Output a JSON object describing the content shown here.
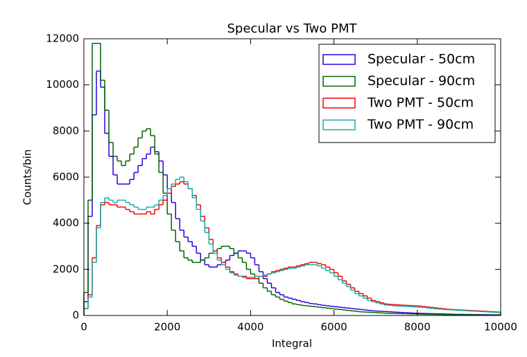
{
  "chart_data": {
    "type": "histogram",
    "title": "Specular vs Two PMT",
    "x_label": "Integral",
    "y_label": "Counts/bin",
    "bins": [
      0,
      100,
      200,
      300,
      400,
      500,
      600,
      700,
      800,
      900,
      1000,
      1100,
      1200,
      1300,
      1400,
      1500,
      1600,
      1700,
      1800,
      1900,
      2000,
      2100,
      2200,
      2300,
      2400,
      2500,
      2600,
      2700,
      2800,
      2900,
      3000,
      3100,
      3200,
      3300,
      3400,
      3500,
      3600,
      3700,
      3800,
      3900,
      4000,
      4100,
      4200,
      4300,
      4400,
      4500,
      4600,
      4700,
      4800,
      4900,
      5000,
      5100,
      5200,
      5300,
      5400,
      5500,
      5600,
      5700,
      5800,
      5900,
      6000,
      6100,
      6200,
      6300,
      6400,
      6500,
      6600,
      6700,
      6800,
      6900,
      7000,
      7100,
      7200,
      7300,
      7400,
      7500,
      7600,
      7700,
      7800,
      7900,
      8000,
      8100,
      8200,
      8300,
      8400,
      8500,
      8600,
      8700,
      8800,
      8900,
      9000,
      9100,
      9200,
      9300,
      9400,
      9500,
      9600,
      9700,
      9800,
      9900,
      10000
    ],
    "series": [
      {
        "name": "Specular - 50cm",
        "color": "#2a00dd",
        "values": [
          600,
          4300,
          8700,
          10600,
          9900,
          7900,
          6900,
          6100,
          5700,
          5700,
          5700,
          5900,
          6200,
          6500,
          6800,
          7000,
          7300,
          7100,
          6700,
          6100,
          5500,
          4900,
          4200,
          3700,
          3400,
          3200,
          3000,
          2700,
          2400,
          2200,
          2100,
          2100,
          2200,
          2300,
          2400,
          2600,
          2700,
          2800,
          2800,
          2700,
          2500,
          2200,
          1900,
          1600,
          1400,
          1200,
          1000,
          900,
          800,
          750,
          700,
          650,
          600,
          560,
          520,
          500,
          470,
          440,
          420,
          400,
          380,
          360,
          340,
          320,
          300,
          280,
          260,
          240,
          220,
          200,
          190,
          180,
          170,
          160,
          150,
          140,
          130,
          120,
          110,
          100,
          95,
          90,
          85,
          80,
          75,
          70,
          65,
          60,
          55,
          50,
          50,
          45,
          45,
          40,
          40,
          35,
          35,
          30,
          30,
          30
        ]
      },
      {
        "name": "Specular - 90cm",
        "color": "#006400",
        "values": [
          1000,
          5000,
          11800,
          11800,
          10200,
          8900,
          7500,
          6900,
          6700,
          6500,
          6700,
          7000,
          7300,
          7700,
          8000,
          8100,
          7800,
          7000,
          6200,
          5300,
          4400,
          3700,
          3200,
          2800,
          2500,
          2400,
          2300,
          2300,
          2400,
          2500,
          2700,
          2800,
          2900,
          3000,
          3000,
          2900,
          2700,
          2500,
          2300,
          2000,
          1800,
          1600,
          1400,
          1200,
          1050,
          900,
          800,
          700,
          620,
          560,
          500,
          470,
          440,
          420,
          400,
          380,
          360,
          340,
          320,
          300,
          280,
          260,
          240,
          220,
          200,
          180,
          160,
          150,
          140,
          130,
          120,
          110,
          100,
          95,
          90,
          85,
          80,
          75,
          70,
          65,
          60,
          55,
          50,
          50,
          45,
          45,
          40,
          40,
          35,
          35,
          30,
          30,
          30,
          25,
          25,
          25,
          20,
          20,
          20,
          20
        ]
      },
      {
        "name": "Two PMT - 50cm",
        "color": "#ff0000",
        "values": [
          300,
          900,
          2500,
          3900,
          4800,
          4900,
          4800,
          4800,
          4700,
          4700,
          4600,
          4500,
          4400,
          4400,
          4400,
          4500,
          4400,
          4600,
          4800,
          5000,
          5300,
          5600,
          5700,
          5800,
          5700,
          5500,
          5200,
          4800,
          4300,
          3800,
          3300,
          2800,
          2500,
          2300,
          2100,
          1900,
          1800,
          1700,
          1700,
          1600,
          1600,
          1600,
          1700,
          1700,
          1800,
          1900,
          1950,
          2000,
          2050,
          2100,
          2100,
          2150,
          2200,
          2250,
          2300,
          2300,
          2250,
          2200,
          2100,
          2000,
          1850,
          1700,
          1500,
          1350,
          1200,
          1050,
          950,
          850,
          750,
          650,
          600,
          550,
          500,
          480,
          470,
          460,
          450,
          440,
          430,
          420,
          410,
          390,
          370,
          350,
          330,
          310,
          290,
          270,
          260,
          250,
          240,
          230,
          220,
          210,
          200,
          190,
          180,
          170,
          160,
          150
        ]
      },
      {
        "name": "Two PMT - 90cm",
        "color": "#17aaaa",
        "values": [
          300,
          800,
          2300,
          3800,
          4900,
          5100,
          5000,
          4900,
          5000,
          5000,
          4900,
          4800,
          4700,
          4600,
          4600,
          4700,
          4700,
          4800,
          5000,
          5200,
          5500,
          5700,
          5900,
          6000,
          5800,
          5500,
          5100,
          4600,
          4100,
          3600,
          3100,
          2700,
          2400,
          2200,
          2000,
          1850,
          1750,
          1700,
          1650,
          1650,
          1650,
          1700,
          1700,
          1750,
          1800,
          1850,
          1900,
          1950,
          2000,
          2050,
          2050,
          2100,
          2150,
          2200,
          2200,
          2200,
          2150,
          2050,
          1950,
          1850,
          1700,
          1550,
          1400,
          1250,
          1100,
          950,
          850,
          750,
          650,
          600,
          550,
          500,
          460,
          440,
          420,
          410,
          400,
          390,
          380,
          370,
          360,
          350,
          330,
          310,
          290,
          280,
          260,
          250,
          240,
          230,
          220,
          210,
          200,
          190,
          180,
          170,
          160,
          150,
          140,
          130
        ]
      }
    ],
    "xlim": [
      0,
      10000
    ],
    "xticks": [
      0,
      2000,
      4000,
      6000,
      8000,
      10000
    ],
    "ylim": [
      0,
      12000
    ],
    "yticks": [
      0,
      2000,
      4000,
      6000,
      8000,
      10000,
      12000
    ],
    "legend": "upper right"
  }
}
